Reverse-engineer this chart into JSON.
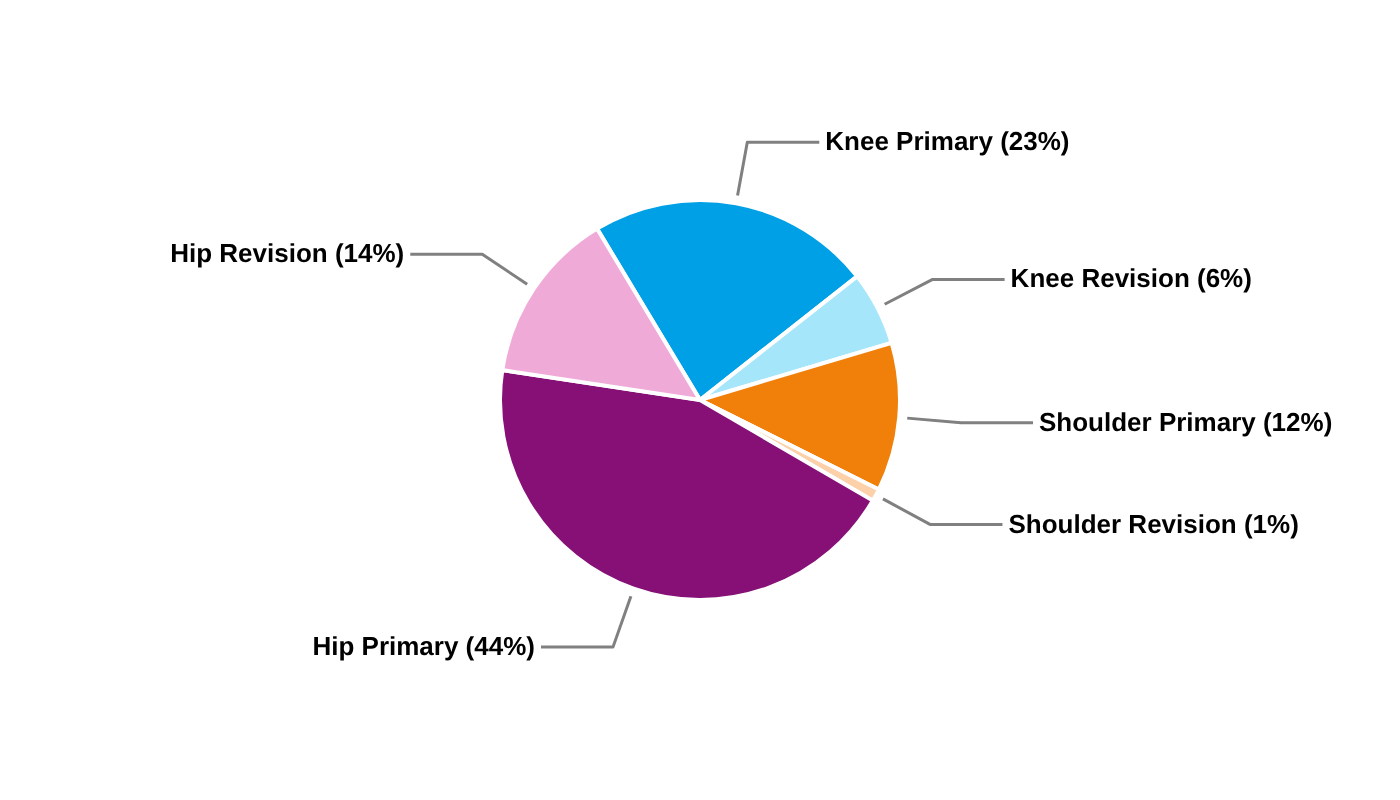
{
  "chart_data": {
    "type": "pie",
    "categories": [
      "Knee Primary (23%)",
      "Knee Revision (6%)",
      "Shoulder Primary (12%)",
      "Shoulder Revision (1%)",
      "Hip Primary (44%)",
      "Hip Revision (14%)"
    ],
    "values": [
      23,
      6,
      12,
      1,
      44,
      14
    ],
    "colors": [
      "#00a0e6",
      "#a6e6fa",
      "#f08009",
      "#fcd0a8",
      "#861076",
      "#f0aad8"
    ]
  }
}
